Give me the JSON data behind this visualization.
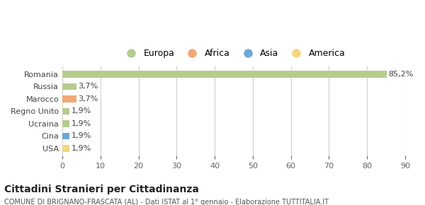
{
  "categories": [
    "USA",
    "Cina",
    "Ucraina",
    "Regno Unito",
    "Marocco",
    "Russia",
    "Romania"
  ],
  "values": [
    1.9,
    1.9,
    1.9,
    1.9,
    3.7,
    3.7,
    85.2
  ],
  "labels": [
    "1,9%",
    "1,9%",
    "1,9%",
    "1,9%",
    "3,7%",
    "3,7%",
    "85,2%"
  ],
  "colors": [
    "#f5d580",
    "#6fa8d6",
    "#b5cc8e",
    "#b5cc8e",
    "#f0a875",
    "#b5cc8e",
    "#b5cc8e"
  ],
  "legend": [
    {
      "label": "Europa",
      "color": "#b5cc8e"
    },
    {
      "label": "Africa",
      "color": "#f0a875"
    },
    {
      "label": "Asia",
      "color": "#6fa8d6"
    },
    {
      "label": "America",
      "color": "#f5d580"
    }
  ],
  "xlim": [
    0,
    90
  ],
  "xticks": [
    0,
    10,
    20,
    30,
    40,
    50,
    60,
    70,
    80,
    90
  ],
  "title": "Cittadini Stranieri per Cittadinanza",
  "subtitle": "COMUNE DI BRIGNANO-FRASCATA (AL) - Dati ISTAT al 1° gennaio - Elaborazione TUTTITALIA.IT",
  "background_color": "#ffffff",
  "grid_color": "#d0d0d0"
}
